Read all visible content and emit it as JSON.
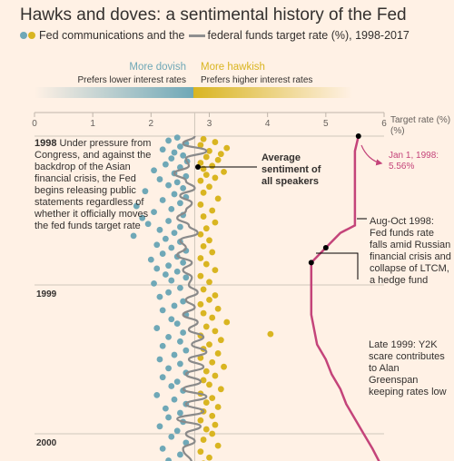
{
  "header": {
    "title": "Hawks and doves: a sentimental history of the Fed",
    "subtitle_part1": "Fed communications and the",
    "subtitle_part2": "federal funds target rate (%), 1998-2017"
  },
  "legend": {
    "dovish_label": "More dovish",
    "dovish_sub": "Prefers lower interest rates",
    "hawkish_label": "More hawkish",
    "hawkish_sub": "Prefers higher interest rates"
  },
  "annotations": {
    "intro_year": "1998",
    "intro_text": "Under pressure from Congress, and against the backdrop of the Asian financial crisis, the Fed begins releasing public statements regardless of whether it officially moves the fed funds target rate",
    "average_label": "Average sentiment of all speakers",
    "jan_label": "Jan 1, 1998: 5.56%",
    "aug_oct": "Aug-Oct 1998: Fed funds rate falls amid Russian financial crisis and collapse of LTCM, a hedge fund",
    "late1999": "Late 1999: Y2K scare contributes to Alan Greenspan keeping rates low"
  },
  "colors": {
    "dovish": "#6fa8b7",
    "hawkish": "#d9b521",
    "average_line": "#8a8a8a",
    "rate_line": "#c4447a",
    "background": "#fff1e5"
  },
  "chart_data": {
    "type": "scatter",
    "title": "Hawks and doves: a sentimental history of the Fed",
    "xlabel": "Target rate (%)",
    "ylabel": "",
    "xlim": [
      0,
      6
    ],
    "x_ticks": [
      "0",
      "1",
      "2",
      "3",
      "4",
      "5",
      "6"
    ],
    "neutral_sentiment": 2.75,
    "time_labels": [
      "1998",
      "1999",
      "2000"
    ],
    "time_range": [
      1998.0,
      2000.25
    ],
    "series": [
      {
        "name": "Fed funds target rate",
        "kind": "line",
        "points": [
          [
            1998.0,
            5.56
          ],
          [
            1998.1,
            5.5
          ],
          [
            1998.2,
            5.5
          ],
          [
            1998.3,
            5.5
          ],
          [
            1998.45,
            5.5
          ],
          [
            1998.6,
            5.5
          ],
          [
            1998.65,
            5.25
          ],
          [
            1998.75,
            5.0
          ],
          [
            1998.85,
            4.75
          ],
          [
            1998.92,
            4.75
          ],
          [
            1999.0,
            4.75
          ],
          [
            1999.2,
            4.75
          ],
          [
            1999.4,
            4.85
          ],
          [
            1999.5,
            5.0
          ],
          [
            1999.6,
            5.1
          ],
          [
            1999.7,
            5.25
          ],
          [
            1999.8,
            5.35
          ],
          [
            1999.9,
            5.5
          ],
          [
            2000.0,
            5.65
          ],
          [
            2000.1,
            5.8
          ],
          [
            2000.25,
            6.0
          ]
        ]
      },
      {
        "name": "Average sentiment of all speakers",
        "kind": "line",
        "points": [
          [
            1998.0,
            2.75
          ],
          [
            1998.05,
            2.55
          ],
          [
            1998.1,
            2.95
          ],
          [
            1998.15,
            2.6
          ],
          [
            1998.2,
            2.65
          ],
          [
            1998.25,
            2.4
          ],
          [
            1998.3,
            2.6
          ],
          [
            1998.35,
            2.75
          ],
          [
            1998.4,
            2.5
          ],
          [
            1998.45,
            2.7
          ],
          [
            1998.5,
            2.6
          ],
          [
            1998.55,
            2.45
          ],
          [
            1998.6,
            2.65
          ],
          [
            1998.65,
            2.8
          ],
          [
            1998.7,
            2.5
          ],
          [
            1998.75,
            2.6
          ],
          [
            1998.8,
            2.45
          ],
          [
            1998.85,
            2.7
          ],
          [
            1998.9,
            2.55
          ],
          [
            1998.95,
            2.7
          ],
          [
            1999.0,
            2.65
          ],
          [
            1999.05,
            2.8
          ],
          [
            1999.1,
            2.6
          ],
          [
            1999.15,
            2.75
          ],
          [
            1999.2,
            2.55
          ],
          [
            1999.25,
            2.8
          ],
          [
            1999.3,
            2.65
          ],
          [
            1999.35,
            2.9
          ],
          [
            1999.4,
            2.7
          ],
          [
            1999.45,
            2.95
          ],
          [
            1999.5,
            2.65
          ],
          [
            1999.55,
            2.9
          ],
          [
            1999.6,
            2.6
          ],
          [
            1999.65,
            2.85
          ],
          [
            1999.7,
            2.55
          ],
          [
            1999.75,
            2.95
          ],
          [
            1999.8,
            2.6
          ],
          [
            1999.85,
            2.9
          ],
          [
            1999.9,
            2.45
          ],
          [
            1999.95,
            2.85
          ],
          [
            2000.0,
            2.6
          ],
          [
            2000.05,
            2.75
          ],
          [
            2000.1,
            2.55
          ],
          [
            2000.2,
            2.7
          ],
          [
            2000.25,
            2.65
          ]
        ]
      },
      {
        "name": "Dovish communications",
        "kind": "points",
        "points": [
          [
            1998.01,
            2.45
          ],
          [
            1998.03,
            2.3
          ],
          [
            1998.05,
            2.6
          ],
          [
            1998.07,
            2.5
          ],
          [
            1998.09,
            2.2
          ],
          [
            1998.11,
            2.4
          ],
          [
            1998.13,
            2.55
          ],
          [
            1998.15,
            2.35
          ],
          [
            1998.17,
            2.62
          ],
          [
            1998.19,
            2.25
          ],
          [
            1998.21,
            2.5
          ],
          [
            1998.23,
            2.05
          ],
          [
            1998.25,
            2.4
          ],
          [
            1998.27,
            2.6
          ],
          [
            1998.29,
            2.15
          ],
          [
            1998.31,
            2.45
          ],
          [
            1998.33,
            2.3
          ],
          [
            1998.35,
            2.55
          ],
          [
            1998.37,
            1.9
          ],
          [
            1998.39,
            2.4
          ],
          [
            1998.41,
            2.6
          ],
          [
            1998.43,
            2.2
          ],
          [
            1998.45,
            2.5
          ],
          [
            1998.47,
            1.75
          ],
          [
            1998.49,
            2.35
          ],
          [
            1998.51,
            2.05
          ],
          [
            1998.53,
            2.55
          ],
          [
            1998.55,
            1.85
          ],
          [
            1998.57,
            2.3
          ],
          [
            1998.59,
            1.95
          ],
          [
            1998.61,
            2.5
          ],
          [
            1998.63,
            2.15
          ],
          [
            1998.65,
            2.4
          ],
          [
            1998.67,
            1.7
          ],
          [
            1998.69,
            2.25
          ],
          [
            1998.71,
            2.5
          ],
          [
            1998.73,
            2.1
          ],
          [
            1998.75,
            2.35
          ],
          [
            1998.77,
            2.6
          ],
          [
            1998.79,
            2.2
          ],
          [
            1998.81,
            2.45
          ],
          [
            1998.83,
            2.0
          ],
          [
            1998.85,
            2.55
          ],
          [
            1998.87,
            2.3
          ],
          [
            1998.89,
            2.1
          ],
          [
            1998.91,
            2.45
          ],
          [
            1998.93,
            2.25
          ],
          [
            1998.95,
            2.6
          ],
          [
            1998.97,
            2.35
          ],
          [
            1998.99,
            2.05
          ],
          [
            1999.02,
            2.5
          ],
          [
            1999.05,
            2.3
          ],
          [
            1999.08,
            2.15
          ],
          [
            1999.11,
            2.55
          ],
          [
            1999.14,
            2.4
          ],
          [
            1999.17,
            2.2
          ],
          [
            1999.2,
            2.6
          ],
          [
            1999.23,
            2.35
          ],
          [
            1999.26,
            2.45
          ],
          [
            1999.29,
            2.1
          ],
          [
            1999.32,
            2.55
          ],
          [
            1999.35,
            2.3
          ],
          [
            1999.38,
            2.5
          ],
          [
            1999.41,
            2.2
          ],
          [
            1999.44,
            2.6
          ],
          [
            1999.47,
            2.4
          ],
          [
            1999.5,
            2.15
          ],
          [
            1999.53,
            2.5
          ],
          [
            1999.56,
            2.3
          ],
          [
            1999.59,
            2.6
          ],
          [
            1999.62,
            2.2
          ],
          [
            1999.65,
            2.45
          ],
          [
            1999.68,
            2.35
          ],
          [
            1999.71,
            2.55
          ],
          [
            1999.74,
            2.1
          ],
          [
            1999.77,
            2.4
          ],
          [
            1999.8,
            2.6
          ],
          [
            1999.83,
            2.25
          ],
          [
            1999.86,
            2.5
          ],
          [
            1999.89,
            2.3
          ],
          [
            1999.92,
            2.55
          ],
          [
            1999.95,
            2.15
          ],
          [
            1999.98,
            2.45
          ],
          [
            2000.02,
            2.35
          ],
          [
            2000.06,
            2.6
          ],
          [
            2000.1,
            2.2
          ],
          [
            2000.14,
            2.5
          ],
          [
            2000.18,
            2.3
          ],
          [
            2000.22,
            2.55
          ]
        ]
      },
      {
        "name": "Hawkish communications",
        "kind": "points",
        "points": [
          [
            1998.02,
            2.9
          ],
          [
            1998.04,
            3.1
          ],
          [
            1998.06,
            2.85
          ],
          [
            1998.08,
            3.3
          ],
          [
            1998.1,
            3.0
          ],
          [
            1998.12,
            3.2
          ],
          [
            1998.14,
            2.95
          ],
          [
            1998.16,
            3.15
          ],
          [
            1998.18,
            2.85
          ],
          [
            1998.2,
            3.05
          ],
          [
            1998.22,
            2.9
          ],
          [
            1998.24,
            3.25
          ],
          [
            1998.26,
            2.95
          ],
          [
            1998.28,
            3.1
          ],
          [
            1998.3,
            2.85
          ],
          [
            1998.34,
            3.0
          ],
          [
            1998.38,
            2.9
          ],
          [
            1998.42,
            3.15
          ],
          [
            1998.46,
            2.85
          ],
          [
            1998.5,
            3.05
          ],
          [
            1998.54,
            2.9
          ],
          [
            1998.58,
            3.1
          ],
          [
            1998.62,
            2.95
          ],
          [
            1998.66,
            2.85
          ],
          [
            1998.7,
            3.0
          ],
          [
            1998.74,
            2.9
          ],
          [
            1998.78,
            3.05
          ],
          [
            1998.82,
            2.85
          ],
          [
            1998.86,
            2.95
          ],
          [
            1998.9,
            3.1
          ],
          [
            1998.94,
            2.85
          ],
          [
            1998.98,
            3.0
          ],
          [
            1999.03,
            2.9
          ],
          [
            1999.07,
            3.1
          ],
          [
            1999.1,
            3.0
          ],
          [
            1999.13,
            2.85
          ],
          [
            1999.16,
            3.15
          ],
          [
            1999.19,
            2.9
          ],
          [
            1999.22,
            3.05
          ],
          [
            1999.25,
            3.3
          ],
          [
            1999.28,
            2.95
          ],
          [
            1999.31,
            3.1
          ],
          [
            1999.34,
            2.85
          ],
          [
            1999.37,
            3.2
          ],
          [
            1999.4,
            3.0
          ],
          [
            1999.43,
            2.9
          ],
          [
            1999.46,
            3.15
          ],
          [
            1999.49,
            2.85
          ],
          [
            1999.52,
            3.05
          ],
          [
            1999.55,
            3.25
          ],
          [
            1999.58,
            2.95
          ],
          [
            1999.61,
            3.1
          ],
          [
            1999.64,
            2.9
          ],
          [
            1999.67,
            3.0
          ],
          [
            1999.7,
            3.2
          ],
          [
            1999.73,
            2.85
          ],
          [
            1999.76,
            3.05
          ],
          [
            1999.79,
            2.95
          ],
          [
            1999.82,
            3.15
          ],
          [
            1999.85,
            2.9
          ],
          [
            1999.88,
            3.05
          ],
          [
            1999.91,
            2.85
          ],
          [
            1999.94,
            3.1
          ],
          [
            1999.97,
            2.95
          ],
          [
            2000.0,
            3.05
          ],
          [
            2000.04,
            2.9
          ],
          [
            2000.08,
            3.15
          ],
          [
            2000.12,
            2.85
          ],
          [
            2000.16,
            3.0
          ],
          [
            2000.2,
            2.9
          ],
          [
            1999.33,
            4.05
          ]
        ]
      }
    ]
  }
}
